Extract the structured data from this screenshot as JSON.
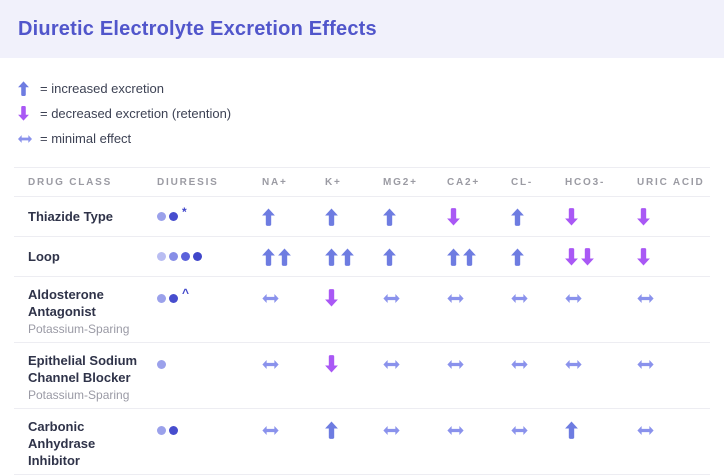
{
  "page_title": "Diuretic Electrolyte Excretion Effects",
  "colors": {
    "header_bg": "#f1f1fb",
    "title": "#5156cb",
    "up_arrow": "#6e7ce1",
    "down_arrow": "#a958f5",
    "minimal_arrow": "#8a92ec",
    "row_title": "#2f3349",
    "subtitle": "#9a9aa5",
    "column_header": "#9b9ba3",
    "legend_text": "#3d4254",
    "divider": "#ededf2",
    "dot_suffix": "#4046ca"
  },
  "legend": {
    "items": [
      {
        "symbol": "up",
        "label": "= increased excretion"
      },
      {
        "symbol": "down",
        "label": "= decreased excretion (retention)"
      },
      {
        "symbol": "minimal",
        "label": "= minimal effect"
      }
    ]
  },
  "chart_data": {
    "type": "table",
    "columns": [
      "DRUG CLASS",
      "DIURESIS",
      "NA+",
      "K+",
      "MG2+",
      "CA2+",
      "CL-",
      "HCO3-",
      "URIC ACID"
    ],
    "effect_columns": [
      "NA+",
      "K+",
      "MG2+",
      "CA2+",
      "CL-",
      "HCO3-",
      "URIC ACID"
    ],
    "effect_key": {
      "up": "increased excretion",
      "up2": "strongly increased excretion (two up arrows)",
      "down": "decreased excretion (retention)",
      "down2": "strongly decreased excretion (two down arrows)",
      "minimal": "minimal effect"
    },
    "rows": [
      {
        "drug_class": "Thiazide Type",
        "subtitle": "",
        "diuresis": {
          "dots": 2,
          "dot_colors": [
            "#9ba1eb",
            "#474dce"
          ],
          "suffix": "*"
        },
        "effects": [
          "up",
          "up",
          "up",
          "down",
          "up",
          "down",
          "down"
        ]
      },
      {
        "drug_class": "Loop",
        "subtitle": "",
        "diuresis": {
          "dots": 4,
          "dot_colors": [
            "#b9bdf2",
            "#878ee7",
            "#5b62db",
            "#4046ca"
          ],
          "suffix": ""
        },
        "effects": [
          "up2",
          "up2",
          "up",
          "up2",
          "up",
          "down2",
          "down"
        ]
      },
      {
        "drug_class": "Aldosterone Antagonist",
        "subtitle": "Potassium-Sparing",
        "diuresis": {
          "dots": 2,
          "dot_colors": [
            "#9ba1eb",
            "#474dce"
          ],
          "suffix": "^"
        },
        "effects": [
          "minimal",
          "down",
          "minimal",
          "minimal",
          "minimal",
          "minimal",
          "minimal"
        ]
      },
      {
        "drug_class": "Epithelial Sodium Channel Blocker",
        "subtitle": "Potassium-Sparing",
        "diuresis": {
          "dots": 1,
          "dot_colors": [
            "#9ba1eb"
          ],
          "suffix": ""
        },
        "effects": [
          "minimal",
          "down",
          "minimal",
          "minimal",
          "minimal",
          "minimal",
          "minimal"
        ]
      },
      {
        "drug_class": "Carbonic Anhydrase Inhibitor",
        "subtitle": "",
        "diuresis": {
          "dots": 2,
          "dot_colors": [
            "#9ba1eb",
            "#474dce"
          ],
          "suffix": ""
        },
        "effects": [
          "minimal",
          "up",
          "minimal",
          "minimal",
          "minimal",
          "up",
          "minimal"
        ]
      }
    ]
  }
}
